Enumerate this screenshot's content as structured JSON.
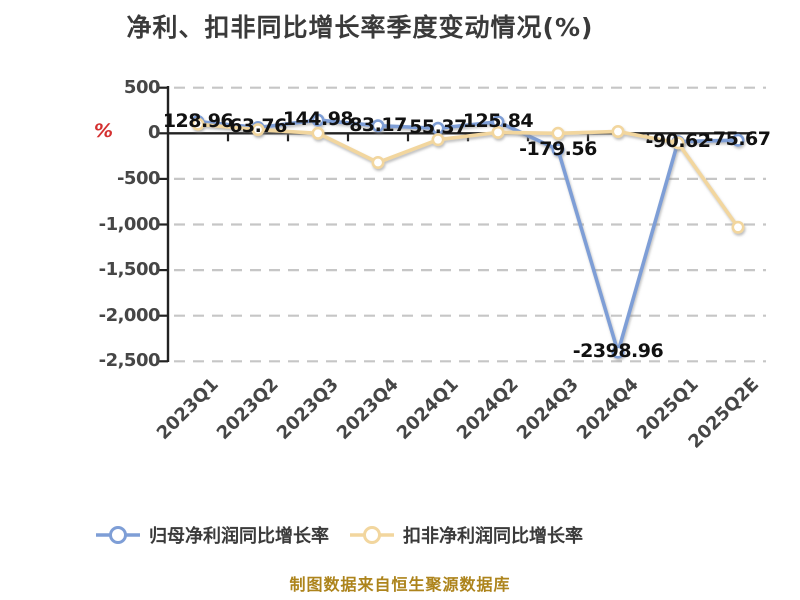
{
  "caption": "制图数据来自恒生聚源数据库",
  "chart_data": {
    "type": "line",
    "title": "净利、扣非同比增长率季度变动情况(%)",
    "unit": "%",
    "categories": [
      "2023Q1",
      "2023Q2",
      "2023Q3",
      "2023Q4",
      "2024Q1",
      "2024Q2",
      "2024Q3",
      "2024Q4",
      "2025Q1",
      "2025Q2E"
    ],
    "series": [
      {
        "name": "归母净利润同比增长率",
        "color": "#7e9ed6",
        "values": [
          128.96,
          63.76,
          144.98,
          83.17,
          55.37,
          125.84,
          -179.56,
          -2398.96,
          -90.62,
          -75.67
        ],
        "labels": [
          "128.96",
          "63.76",
          "144.98",
          "83.17",
          "55.37",
          "125.84",
          "-179.56",
          "-2398.96",
          "-90.62",
          "-75.67"
        ],
        "labels_shown": true
      },
      {
        "name": "扣非净利润同比增长率",
        "color": "#f2d69e",
        "values": [
          100,
          40,
          0,
          -320,
          -70,
          10,
          0,
          20,
          -105,
          -1030
        ],
        "labels_shown": false,
        "values_estimated": true
      }
    ],
    "ylim": [
      -2500,
      500
    ],
    "y_ticks": [
      500,
      0,
      -500,
      -1000,
      -1500,
      -2000,
      -2500
    ],
    "y_tick_labels": [
      "500",
      "0",
      "-500",
      "-1,000",
      "-1,500",
      "-2,000",
      "-2,500"
    ],
    "grid": "horizontal-dashed",
    "legend_position": "bottom",
    "marker": "circle-white-fill"
  },
  "colors": {
    "series_blue": "#7e9ed6",
    "series_yellow": "#f2d69e",
    "title_text": "#3a3a3a",
    "axis_text": "#464646",
    "data_label_text": "#111111",
    "unit_symbol": "#d43030",
    "caption_text": "#ad841c",
    "grid_line": "#c6c6c6",
    "axis_line": "#222222",
    "background": "#ffffff"
  }
}
